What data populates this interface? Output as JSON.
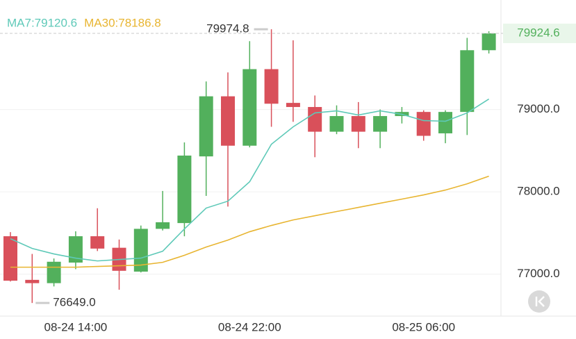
{
  "chart_data": {
    "type": "candlestick",
    "categories": [
      null,
      null,
      null,
      "08-24 14:00",
      null,
      null,
      null,
      null,
      null,
      null,
      null,
      "08-24 22:00",
      null,
      null,
      null,
      null,
      null,
      null,
      null,
      "08-25 06:00",
      null,
      null,
      null
    ],
    "open": [
      77460,
      76930,
      76890,
      77140,
      77460,
      77320,
      77030,
      77550,
      77620,
      78430,
      79160,
      78560,
      79490,
      79080,
      79030,
      78730,
      78920,
      78730,
      78920,
      78970,
      78710,
      78970,
      79720
    ],
    "high": [
      77510,
      77245,
      77190,
      77520,
      77800,
      77420,
      77590,
      78010,
      78600,
      79340,
      79450,
      79830,
      79974.8,
      79840,
      79170,
      79050,
      79090,
      79000,
      79030,
      78990,
      78990,
      79870,
      79950
    ],
    "low": [
      76910,
      76649,
      76850,
      77060,
      77280,
      76810,
      77020,
      77530,
      77460,
      77950,
      77820,
      78540,
      78790,
      78850,
      78420,
      78700,
      78530,
      78530,
      78830,
      78620,
      78590,
      78690,
      79680
    ],
    "close": [
      76920,
      76890,
      77150,
      77460,
      77310,
      77040,
      77550,
      77630,
      78440,
      79160,
      78560,
      79490,
      79070,
      79030,
      78730,
      78920,
      78730,
      78920,
      78970,
      78680,
      78970,
      79720,
      79924.6
    ],
    "up_color": "#52b05c",
    "down_color": "#d9505a",
    "series": [
      {
        "name": "MA7:79120.6",
        "color": "#5ec9b8",
        "values": [
          77430,
          77312,
          77245,
          77194,
          77160,
          77177,
          77194,
          77278,
          77549,
          77802,
          77886,
          78122,
          78578,
          78789,
          78958,
          78983,
          78933,
          78983,
          78941,
          78865,
          78857,
          78958,
          79127
        ]
      },
      {
        "name": "MA30:78186.8",
        "color": "#e8b531",
        "values": [
          77084,
          77084,
          77084,
          77084,
          77093,
          77101,
          77110,
          77143,
          77228,
          77329,
          77413,
          77515,
          77591,
          77658,
          77709,
          77760,
          77810,
          77861,
          77911,
          77962,
          78021,
          78097,
          78190
        ]
      }
    ],
    "high_label": "79974.8",
    "low_label": "76649.0",
    "ylim": [
      76490,
      80330
    ],
    "yticks": [
      {
        "value": 77000,
        "label": "77000.0"
      },
      {
        "value": 78000,
        "label": "78000.0"
      },
      {
        "value": 79000,
        "label": "79000.0"
      }
    ],
    "grid": true
  }
}
